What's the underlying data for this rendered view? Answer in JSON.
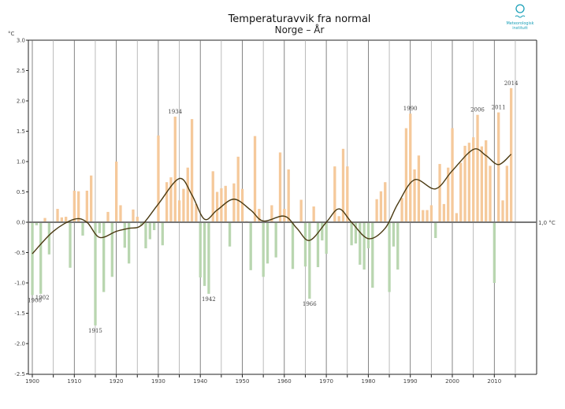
{
  "chart_data": {
    "type": "bar",
    "title": "Temperaturavvik fra normal",
    "subtitle": "Norge – År",
    "ylabel": "°C",
    "reference_label": "1,0 °C",
    "ylim": [
      -2.5,
      3.0
    ],
    "xlim": [
      1900,
      2019
    ],
    "grid": "vertical every 5 years",
    "yticks": [
      "3.0",
      "2.5",
      "2.0",
      "1.5",
      "1.0",
      "0.5",
      "0.0",
      "-0.5",
      "-1.0",
      "-1.5",
      "-2.0",
      "-2.5"
    ],
    "xticks": [
      "1900",
      "1910",
      "1920",
      "1930",
      "1940",
      "1950",
      "1960",
      "1970",
      "1980",
      "1990",
      "2000",
      "2010"
    ],
    "colors": {
      "positive": "#f5c99b",
      "negative": "#b9d6b0",
      "smooth": "#4a3a12",
      "zero": "#777777"
    },
    "years_start": 1900,
    "values": [
      -1.2,
      -0.05,
      -1.18,
      0.07,
      -0.53,
      0.0,
      0.22,
      0.08,
      0.09,
      -0.75,
      0.52,
      0.51,
      -0.22,
      0.52,
      0.77,
      -1.7,
      -0.18,
      -1.15,
      0.17,
      -0.9,
      1.0,
      0.28,
      -0.42,
      -0.68,
      0.21,
      0.09,
      -0.05,
      -0.43,
      -0.28,
      -0.13,
      1.43,
      -0.38,
      0.66,
      0.74,
      1.74,
      0.36,
      0.55,
      0.9,
      1.7,
      0.3,
      -0.91,
      -1.05,
      -1.18,
      0.84,
      0.5,
      0.56,
      0.6,
      -0.4,
      0.64,
      1.08,
      0.55,
      0.02,
      -0.79,
      1.42,
      0.22,
      -0.9,
      -0.68,
      0.28,
      -0.58,
      1.15,
      0.22,
      0.87,
      -0.77,
      0.0,
      0.37,
      -0.73,
      -1.26,
      0.26,
      -0.74,
      -0.3,
      -0.52,
      0.0,
      0.92,
      0.1,
      1.21,
      0.92,
      -0.38,
      -0.35,
      -0.7,
      -0.78,
      -0.43,
      -1.08,
      0.38,
      0.51,
      0.66,
      -1.15,
      -0.4,
      -0.78,
      0.4,
      1.55,
      1.79,
      0.87,
      1.1,
      0.2,
      0.2,
      0.28,
      -0.26,
      0.96,
      0.3,
      0.9,
      1.55,
      0.15,
      0.98,
      1.26,
      1.31,
      1.4,
      1.77,
      1.25,
      1.35,
      0.93,
      -1.0,
      1.81,
      0.36,
      0.93,
      2.21
    ],
    "smoothed": {
      "years": [
        1900,
        1905,
        1910,
        1913,
        1916,
        1920,
        1923,
        1926,
        1930,
        1935,
        1938,
        1941,
        1944,
        1948,
        1952,
        1955,
        1960,
        1963,
        1966,
        1970,
        1973,
        1976,
        1980,
        1984,
        1987,
        1991,
        1996,
        2000,
        2005,
        2008,
        2011,
        2014
      ],
      "values": [
        -0.52,
        -0.15,
        0.05,
        0.0,
        -0.25,
        -0.15,
        -0.1,
        -0.05,
        0.3,
        0.72,
        0.45,
        0.05,
        0.2,
        0.38,
        0.2,
        0.02,
        0.1,
        -0.1,
        -0.3,
        0.0,
        0.22,
        0.0,
        -0.27,
        -0.1,
        0.3,
        0.7,
        0.55,
        0.85,
        1.2,
        1.1,
        0.95,
        1.12
      ]
    },
    "annotations": [
      {
        "year": 1900,
        "label": "1900"
      },
      {
        "year": 1902,
        "label": "1902"
      },
      {
        "year": 1915,
        "label": "1915"
      },
      {
        "year": 1934,
        "label": "1934"
      },
      {
        "year": 1942,
        "label": "1942"
      },
      {
        "year": 1966,
        "label": "1966"
      },
      {
        "year": 1990,
        "label": "1990"
      },
      {
        "year": 2006,
        "label": "2006"
      },
      {
        "year": 2011,
        "label": "2011"
      },
      {
        "year": 2014,
        "label": "2014"
      }
    ]
  },
  "logo": {
    "line1": "Meteorologisk",
    "line2": "institutt"
  }
}
